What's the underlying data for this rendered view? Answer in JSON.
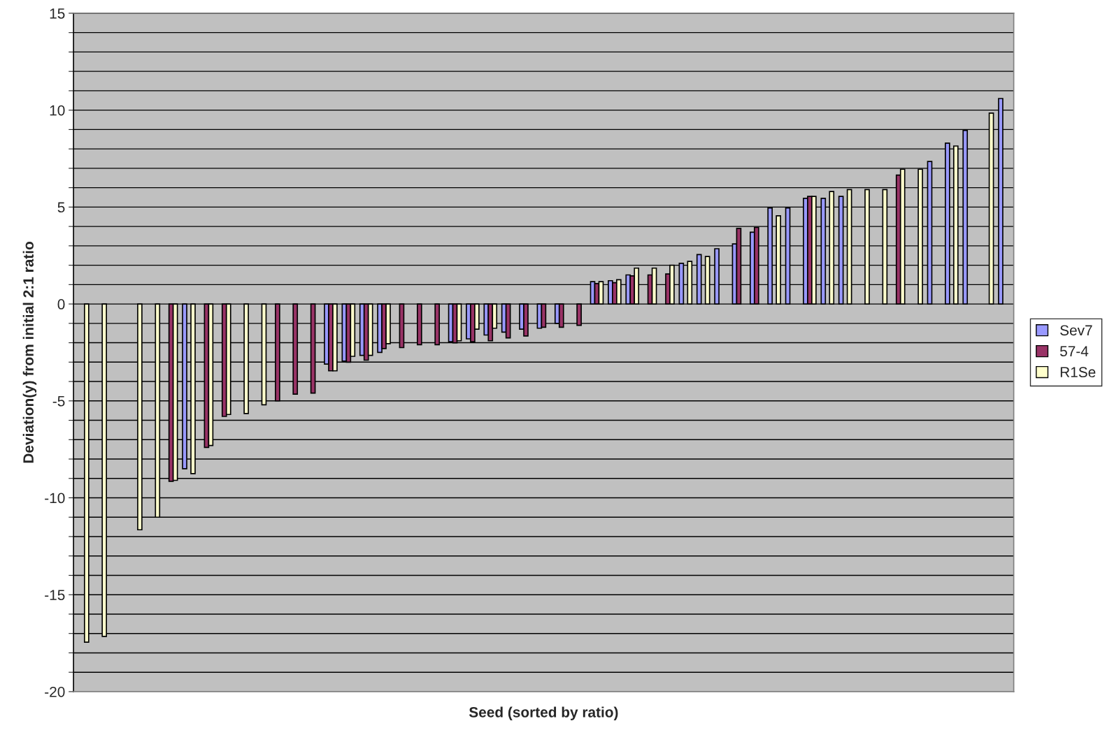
{
  "chart_data": {
    "type": "bar",
    "xlabel": "Seed (sorted by ratio)",
    "ylabel": "Deviation(y) from initial 2:1 ratio",
    "categories": [
      null,
      null,
      null,
      null,
      null,
      null,
      null,
      null,
      null,
      null,
      null,
      null,
      null,
      null,
      null,
      null,
      null,
      null,
      null,
      null,
      null,
      null,
      null,
      null,
      null,
      null,
      null,
      null,
      null,
      null,
      null,
      null,
      null,
      null,
      null,
      null,
      null,
      null,
      null,
      null,
      null,
      null,
      null,
      null,
      null,
      null,
      null,
      null,
      null,
      null,
      null,
      null,
      null
    ],
    "series": [
      {
        "name": "Sev7",
        "color": "#9999ff",
        "values": [
          null,
          null,
          null,
          null,
          null,
          null,
          -8.5,
          null,
          null,
          null,
          null,
          null,
          null,
          null,
          -3.1,
          -2.95,
          -2.65,
          -2.5,
          null,
          null,
          null,
          -1.95,
          -1.8,
          -1.6,
          -1.45,
          -1.3,
          -1.25,
          -1.0,
          null,
          1.15,
          1.2,
          1.5,
          null,
          null,
          2.1,
          2.55,
          2.85,
          3.1,
          3.7,
          4.95,
          4.95,
          5.45,
          5.45,
          5.55,
          null,
          null,
          null,
          null,
          7.35,
          8.3,
          8.95,
          null,
          10.6
        ]
      },
      {
        "name": "57-4",
        "color": "#993366",
        "values": [
          null,
          null,
          null,
          null,
          null,
          -9.15,
          null,
          -7.4,
          -5.8,
          null,
          null,
          -5.0,
          -4.65,
          -4.6,
          -3.45,
          -3.0,
          -2.9,
          -2.3,
          -2.25,
          -2.1,
          -2.1,
          -2.0,
          -1.95,
          -1.9,
          -1.75,
          -1.65,
          -1.2,
          -1.2,
          -1.1,
          1.05,
          1.1,
          1.45,
          1.5,
          1.55,
          null,
          null,
          null,
          3.9,
          3.95,
          null,
          null,
          5.55,
          null,
          null,
          null,
          null,
          6.65,
          null,
          null,
          null,
          null,
          null,
          null
        ]
      },
      {
        "name": "R1Se",
        "color": "#ffffcc",
        "values": [
          -17.45,
          -17.15,
          null,
          -11.65,
          -11.0,
          -9.1,
          -8.75,
          -7.3,
          -5.7,
          -5.65,
          -5.2,
          null,
          null,
          null,
          -3.45,
          -2.7,
          -2.65,
          -2.05,
          null,
          null,
          null,
          -1.9,
          -1.3,
          -1.25,
          null,
          null,
          null,
          null,
          null,
          1.15,
          1.25,
          1.85,
          1.85,
          2.0,
          2.2,
          2.45,
          null,
          null,
          null,
          4.55,
          null,
          5.55,
          5.8,
          5.9,
          5.9,
          5.9,
          6.95,
          6.95,
          null,
          8.15,
          null,
          9.85,
          null
        ]
      }
    ],
    "ylim": [
      -20,
      15
    ],
    "yticks": [
      -20,
      {
        "value": -19,
        "label": null
      },
      {
        "value": -18,
        "label": null
      },
      {
        "value": -17,
        "label": null
      },
      {
        "value": -16,
        "label": null
      },
      -15,
      {
        "value": -14,
        "label": null
      },
      {
        "value": -13,
        "label": null
      },
      {
        "value": -12,
        "label": null
      },
      {
        "value": -11,
        "label": null
      },
      -10,
      {
        "value": -9,
        "label": null
      },
      {
        "value": -8,
        "label": null
      },
      {
        "value": -7,
        "label": null
      },
      {
        "value": -6,
        "label": null
      },
      -5,
      {
        "value": -4,
        "label": null
      },
      {
        "value": -3,
        "label": null
      },
      {
        "value": -2,
        "label": null
      },
      {
        "value": -1,
        "label": null
      },
      0,
      {
        "value": 1,
        "label": null
      },
      {
        "value": 2,
        "label": null
      },
      {
        "value": 3,
        "label": null
      },
      {
        "value": 4,
        "label": null
      },
      5,
      {
        "value": 6,
        "label": null
      },
      {
        "value": 7,
        "label": null
      },
      {
        "value": 8,
        "label": null
      },
      {
        "value": 9,
        "label": null
      },
      10,
      {
        "value": 11,
        "label": null
      },
      {
        "value": 12,
        "label": null
      },
      {
        "value": 13,
        "label": null
      },
      {
        "value": 14,
        "label": null
      },
      15
    ],
    "grid": "y",
    "legend": "right"
  }
}
